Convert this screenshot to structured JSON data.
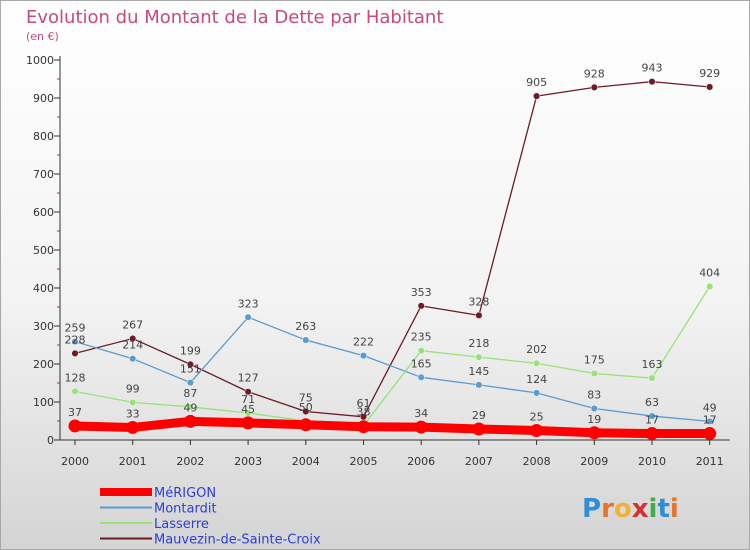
{
  "chart_data": {
    "type": "line",
    "title": "Evolution du Montant de la Dette par Habitant",
    "subtitle": "(en €)",
    "xlabel": "",
    "ylabel": "",
    "ylim": [
      0,
      1000
    ],
    "yticks": [
      0,
      100,
      200,
      300,
      400,
      500,
      600,
      700,
      800,
      900,
      1000
    ],
    "categories": [
      "2000",
      "2001",
      "2002",
      "2003",
      "2004",
      "2005",
      "2006",
      "2007",
      "2008",
      "2009",
      "2010",
      "2011"
    ],
    "grid": false,
    "legend_position": "bottom-left",
    "series": [
      {
        "name": "MéRIGON",
        "color": "#ff0000",
        "values": [
          37,
          33,
          49,
          45,
          40,
          35,
          34,
          29,
          25,
          19,
          17,
          17
        ],
        "labels": [
          "37",
          "33",
          "49",
          "45",
          "",
          "",
          "34",
          "29",
          "25",
          "19",
          "17",
          "17"
        ]
      },
      {
        "name": "Montardit",
        "color": "#5b9bd0",
        "values": [
          259,
          214,
          151,
          323,
          263,
          222,
          165,
          145,
          124,
          83,
          63,
          49
        ],
        "labels": [
          "259",
          "214",
          "151",
          "323",
          "263",
          "222",
          "165",
          "145",
          "124",
          "83",
          "63",
          "49"
        ]
      },
      {
        "name": "Lasserre",
        "color": "#99e27a",
        "values": [
          128,
          99,
          87,
          71,
          50,
          38,
          235,
          218,
          202,
          175,
          163,
          404
        ],
        "labels": [
          "128",
          "99",
          "87",
          "71",
          "50",
          "38",
          "235",
          "218",
          "202",
          "175",
          "163",
          "404"
        ]
      },
      {
        "name": "Mauvezin-de-Sainte-Croix",
        "color": "#6b1c24",
        "values": [
          228,
          267,
          199,
          127,
          75,
          61,
          353,
          328,
          905,
          928,
          943,
          929
        ],
        "labels": [
          "228",
          "267",
          "199",
          "127",
          "75",
          "61",
          "353",
          "328",
          "905",
          "928",
          "943",
          "929"
        ]
      }
    ]
  },
  "brand": {
    "logo_text": "Proxiti"
  }
}
